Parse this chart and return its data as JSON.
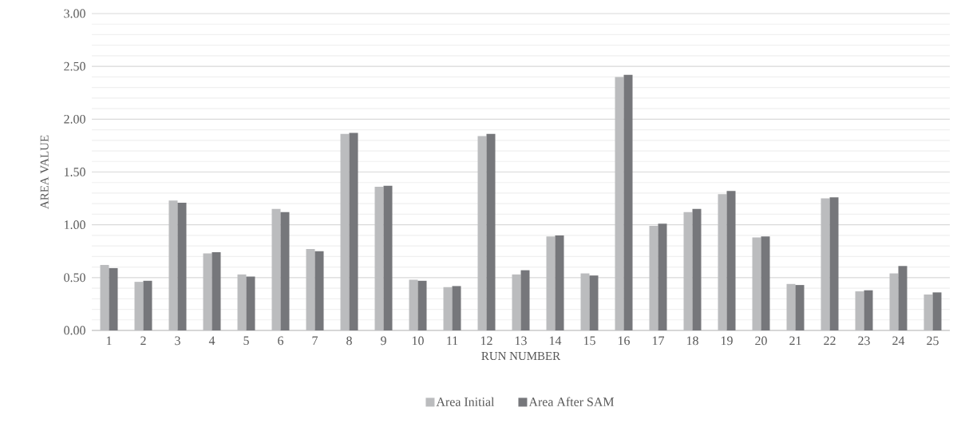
{
  "chart_data": {
    "type": "bar",
    "xlabel": "RUN NUMBER",
    "ylabel": "AREA VALUE",
    "categories": [
      "1",
      "2",
      "3",
      "4",
      "5",
      "6",
      "7",
      "8",
      "9",
      "10",
      "11",
      "12",
      "13",
      "14",
      "15",
      "16",
      "17",
      "18",
      "19",
      "20",
      "21",
      "22",
      "23",
      "24",
      "25"
    ],
    "series": [
      {
        "name": "Area Initial",
        "color": "#bbbcbe",
        "values": [
          0.62,
          0.46,
          1.23,
          0.73,
          0.53,
          1.15,
          0.77,
          1.86,
          1.36,
          0.48,
          0.41,
          1.84,
          0.53,
          0.89,
          0.54,
          2.4,
          0.99,
          1.12,
          1.29,
          0.88,
          0.44,
          1.25,
          0.37,
          0.54,
          0.34
        ]
      },
      {
        "name": "Area After SAM",
        "color": "#76777b",
        "values": [
          0.59,
          0.47,
          1.21,
          0.74,
          0.51,
          1.12,
          0.75,
          1.87,
          1.37,
          0.47,
          0.42,
          1.86,
          0.57,
          0.9,
          0.52,
          2.42,
          1.01,
          1.15,
          1.32,
          0.89,
          0.43,
          1.26,
          0.38,
          0.61,
          0.36
        ]
      }
    ],
    "ylim": [
      0,
      3
    ],
    "yticks": [
      {
        "value": 0,
        "label": "0.00"
      },
      {
        "value": 0.1,
        "label": null
      },
      {
        "value": 0.2,
        "label": null
      },
      {
        "value": 0.3,
        "label": null
      },
      {
        "value": 0.4,
        "label": null
      },
      {
        "value": 0.5,
        "label": "0.50"
      },
      {
        "value": 0.6,
        "label": null
      },
      {
        "value": 0.7,
        "label": null
      },
      {
        "value": 0.8,
        "label": null
      },
      {
        "value": 0.9,
        "label": null
      },
      {
        "value": 1,
        "label": "1.00"
      },
      {
        "value": 1.1,
        "label": null
      },
      {
        "value": 1.2,
        "label": null
      },
      {
        "value": 1.3,
        "label": null
      },
      {
        "value": 1.4,
        "label": null
      },
      {
        "value": 1.5,
        "label": "1.50"
      },
      {
        "value": 1.6,
        "label": null
      },
      {
        "value": 1.7,
        "label": null
      },
      {
        "value": 1.8,
        "label": null
      },
      {
        "value": 1.9,
        "label": null
      },
      {
        "value": 2,
        "label": "2.00"
      },
      {
        "value": 2.1,
        "label": null
      },
      {
        "value": 2.2,
        "label": null
      },
      {
        "value": 2.3,
        "label": null
      },
      {
        "value": 2.4,
        "label": null
      },
      {
        "value": 2.5,
        "label": "2.50"
      },
      {
        "value": 2.6,
        "label": null
      },
      {
        "value": 2.7,
        "label": null
      },
      {
        "value": 2.8,
        "label": null
      },
      {
        "value": 2.9,
        "label": null
      },
      {
        "value": 3,
        "label": "3.00"
      }
    ],
    "grid": "y",
    "legend": "bottom"
  }
}
